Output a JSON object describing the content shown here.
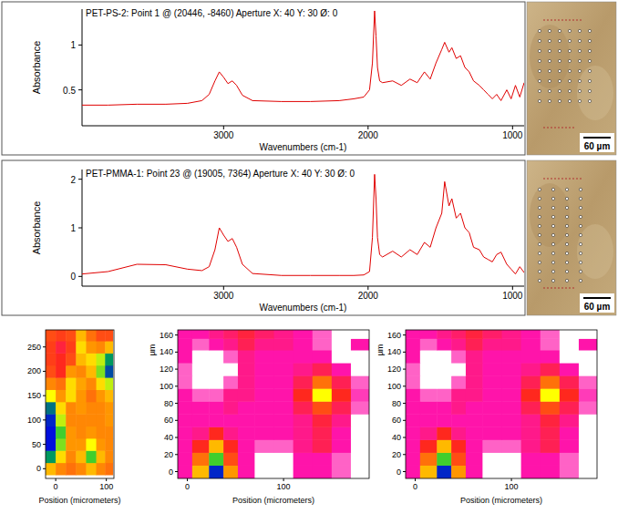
{
  "chart_data": [
    {
      "type": "line",
      "title": "PET-PS-2: Point 1 @ (20446, -8460) Aperture X: 40 Y: 30 Ø: 0",
      "x_label": "Wavenumbers (cm-1)",
      "y_label": "Absorbance",
      "x": [
        3980,
        3800,
        3600,
        3400,
        3250,
        3150,
        3100,
        3060,
        3030,
        3000,
        2970,
        2940,
        2910,
        2870,
        2800,
        2600,
        2400,
        2200,
        2100,
        2030,
        1990,
        1970,
        1955,
        1945,
        1935,
        1920,
        1900,
        1830,
        1770,
        1710,
        1660,
        1610,
        1570,
        1530,
        1490,
        1470,
        1440,
        1420,
        1390,
        1360,
        1330,
        1300,
        1270,
        1230,
        1200,
        1170,
        1140,
        1110,
        1080,
        1040,
        1010,
        980,
        950,
        920
      ],
      "values": [
        0.33,
        0.33,
        0.34,
        0.34,
        0.35,
        0.38,
        0.45,
        0.6,
        0.7,
        0.64,
        0.57,
        0.6,
        0.55,
        0.44,
        0.38,
        0.37,
        0.37,
        0.38,
        0.4,
        0.42,
        0.5,
        0.8,
        1.38,
        1.1,
        0.75,
        0.6,
        0.58,
        0.6,
        0.55,
        0.62,
        0.58,
        0.7,
        0.62,
        0.8,
        0.95,
        1.03,
        0.92,
        0.97,
        0.85,
        0.88,
        0.75,
        0.7,
        0.6,
        0.55,
        0.5,
        0.45,
        0.4,
        0.45,
        0.38,
        0.5,
        0.4,
        0.55,
        0.42,
        0.58
      ],
      "color": "#e00000",
      "xlim": [
        3980,
        920
      ],
      "ylim": [
        0.1,
        1.4
      ],
      "xticks": [
        3000,
        2000,
        1000
      ],
      "yticks": [
        0.5,
        1
      ],
      "grid": false,
      "annotations": [
        "60 µm"
      ]
    },
    {
      "type": "line",
      "title": "PET-PMMA-1: Point 23 @ (19005, 7364) Aperture X: 40 Y: 30 Ø: 0",
      "x_label": "Wavenumbers (cm-1)",
      "y_label": "Absorbance",
      "x": [
        3980,
        3800,
        3600,
        3400,
        3250,
        3150,
        3100,
        3060,
        3030,
        3000,
        2970,
        2940,
        2910,
        2870,
        2800,
        2600,
        2400,
        2200,
        2100,
        2030,
        1990,
        1970,
        1955,
        1945,
        1935,
        1920,
        1900,
        1830,
        1770,
        1710,
        1660,
        1610,
        1570,
        1530,
        1490,
        1470,
        1440,
        1420,
        1390,
        1360,
        1330,
        1300,
        1270,
        1230,
        1200,
        1170,
        1140,
        1110,
        1080,
        1040,
        1010,
        980,
        950,
        920
      ],
      "values": [
        0.05,
        0.1,
        0.25,
        0.24,
        0.15,
        0.12,
        0.2,
        0.55,
        1.0,
        0.85,
        0.72,
        0.78,
        0.6,
        0.25,
        0.06,
        0.02,
        0.02,
        0.02,
        0.02,
        0.03,
        0.1,
        0.8,
        2.1,
        1.6,
        0.8,
        0.45,
        0.4,
        0.52,
        0.4,
        0.55,
        0.45,
        0.7,
        0.6,
        1.0,
        1.3,
        1.95,
        1.45,
        1.6,
        1.2,
        1.3,
        1.0,
        0.9,
        0.6,
        0.55,
        0.4,
        0.35,
        0.3,
        0.45,
        0.5,
        0.25,
        0.15,
        0.05,
        0.2,
        0.08
      ],
      "color": "#e00000",
      "xlim": [
        3980,
        920
      ],
      "ylim": [
        -0.2,
        2.2
      ],
      "xticks": [
        3000,
        2000,
        1000
      ],
      "yticks": [
        0,
        1,
        2
      ],
      "grid": false,
      "annotations": [
        "60 µm"
      ]
    },
    {
      "type": "heatmap",
      "x_label": "Position (micrometers)",
      "x": [
        -10,
        10,
        30,
        50,
        70,
        90,
        105
      ],
      "y": [
        0,
        25,
        50,
        75,
        100,
        125,
        150,
        175,
        200,
        225,
        250,
        275
      ],
      "cells": [
        [
          0.55,
          0.62,
          0.65,
          0.62,
          0.55,
          0.62,
          0.65
        ],
        [
          0.2,
          0.5,
          0.62,
          0.55,
          0.3,
          0.55,
          0.62
        ],
        [
          0.02,
          0.35,
          0.6,
          0.6,
          0.45,
          0.6,
          0.62
        ],
        [
          0.02,
          0.3,
          0.6,
          0.62,
          0.6,
          0.62,
          0.62
        ],
        [
          0.05,
          0.4,
          0.62,
          0.62,
          0.62,
          0.62,
          0.6
        ],
        [
          0.15,
          0.5,
          0.62,
          0.6,
          0.62,
          0.62,
          0.6
        ],
        [
          0.45,
          0.6,
          0.5,
          0.6,
          0.65,
          0.6,
          0.55
        ],
        [
          0.62,
          0.65,
          0.5,
          0.58,
          0.62,
          0.5,
          0.4
        ],
        [
          0.7,
          0.75,
          0.6,
          0.62,
          0.55,
          0.35,
          0.1
        ],
        [
          0.72,
          0.75,
          0.7,
          0.55,
          0.5,
          0.4,
          0.2
        ],
        [
          0.72,
          0.78,
          0.72,
          0.5,
          0.6,
          0.62,
          0.55
        ],
        [
          0.7,
          0.72,
          0.7,
          0.55,
          0.65,
          0.7,
          0.7
        ]
      ],
      "zlim": [
        0,
        1
      ],
      "xlim": [
        -20,
        115
      ],
      "ylim": [
        -20,
        285
      ],
      "xticks": [
        0,
        100
      ],
      "yticks": [
        0,
        50,
        100,
        150,
        200,
        250
      ]
    },
    {
      "type": "heatmap",
      "x_label": "Position (micrometers)",
      "y_label": "µm",
      "x": [
        -5,
        15,
        30,
        45,
        60,
        80,
        100,
        120,
        140,
        160,
        180
      ],
      "y": [
        0,
        15,
        30,
        45,
        60,
        75,
        90,
        105,
        120,
        135,
        150,
        162
      ],
      "cells": [
        [
          0.88,
          0.55,
          0.05,
          0.6,
          0.88,
          1,
          1,
          0.88,
          0.88,
          0.92,
          1
        ],
        [
          0.88,
          0.65,
          0.3,
          0.7,
          0.88,
          1,
          1,
          0.88,
          0.88,
          0.92,
          1
        ],
        [
          0.88,
          0.75,
          0.55,
          0.75,
          0.88,
          0.92,
          0.92,
          0.85,
          0.8,
          0.88,
          1
        ],
        [
          0.88,
          0.85,
          0.75,
          0.85,
          0.88,
          0.88,
          0.88,
          0.85,
          0.8,
          0.88,
          1
        ],
        [
          0.88,
          0.88,
          0.88,
          0.88,
          0.88,
          0.88,
          0.88,
          0.85,
          0.78,
          0.85,
          1
        ],
        [
          0.88,
          0.88,
          0.88,
          0.85,
          0.88,
          0.88,
          0.88,
          0.8,
          0.7,
          0.8,
          0.92
        ],
        [
          0.88,
          0.92,
          0.92,
          0.85,
          0.85,
          0.88,
          0.88,
          0.75,
          0.45,
          0.75,
          0.9
        ],
        [
          0.92,
          1,
          1,
          0.92,
          0.85,
          0.88,
          0.88,
          0.8,
          0.65,
          0.8,
          0.92
        ],
        [
          0.92,
          1,
          1,
          1,
          0.85,
          0.88,
          0.88,
          0.85,
          0.8,
          0.88,
          1
        ],
        [
          0.88,
          1,
          1,
          0.92,
          0.85,
          0.88,
          0.88,
          0.88,
          0.88,
          1,
          1
        ],
        [
          0.88,
          0.92,
          0.88,
          0.85,
          0.8,
          0.85,
          0.85,
          0.88,
          0.92,
          1,
          0.88
        ],
        [
          0.88,
          0.88,
          0.85,
          0.82,
          0.78,
          0.82,
          0.85,
          0.88,
          0.92,
          1,
          1
        ]
      ],
      "zlim": [
        0,
        1
      ],
      "xlim": [
        -10,
        189
      ],
      "ylim": [
        -8,
        166
      ],
      "xticks": [
        0,
        100
      ],
      "yticks": [
        0,
        20,
        40,
        60,
        80,
        100,
        120,
        140,
        160
      ]
    },
    {
      "type": "heatmap",
      "x_label": "Position (micrometers)",
      "y_label": "µm",
      "x": [
        -5,
        15,
        30,
        45,
        60,
        80,
        100,
        120,
        140,
        160,
        180
      ],
      "y": [
        0,
        15,
        30,
        45,
        60,
        75,
        90,
        105,
        120,
        135,
        150,
        162
      ],
      "cells": [
        [
          0.88,
          0.55,
          0.05,
          0.6,
          0.88,
          1,
          1,
          0.88,
          0.88,
          0.92,
          1
        ],
        [
          0.88,
          0.65,
          0.3,
          0.7,
          0.88,
          1,
          1,
          0.88,
          0.88,
          0.92,
          1
        ],
        [
          0.88,
          0.75,
          0.55,
          0.75,
          0.88,
          0.92,
          0.92,
          0.85,
          0.8,
          0.88,
          1
        ],
        [
          0.88,
          0.85,
          0.75,
          0.85,
          0.88,
          0.88,
          0.88,
          0.85,
          0.8,
          0.88,
          1
        ],
        [
          0.88,
          0.88,
          0.88,
          0.88,
          0.88,
          0.88,
          0.88,
          0.85,
          0.78,
          0.85,
          1
        ],
        [
          0.88,
          0.88,
          0.88,
          0.85,
          0.88,
          0.88,
          0.88,
          0.8,
          0.7,
          0.8,
          0.92
        ],
        [
          0.88,
          0.92,
          0.92,
          0.85,
          0.85,
          0.88,
          0.88,
          0.75,
          0.45,
          0.75,
          0.9
        ],
        [
          0.92,
          1,
          1,
          0.92,
          0.85,
          0.88,
          0.88,
          0.8,
          0.65,
          0.8,
          0.92
        ],
        [
          0.92,
          1,
          1,
          1,
          0.85,
          0.88,
          0.88,
          0.85,
          0.8,
          0.88,
          1
        ],
        [
          0.88,
          1,
          1,
          0.92,
          0.85,
          0.88,
          0.88,
          0.88,
          0.88,
          1,
          1
        ],
        [
          0.88,
          0.92,
          0.88,
          0.85,
          0.8,
          0.85,
          0.85,
          0.88,
          0.92,
          1,
          0.88
        ],
        [
          0.88,
          0.88,
          0.85,
          0.82,
          0.78,
          0.82,
          0.85,
          0.88,
          0.92,
          1,
          1
        ]
      ],
      "zlim": [
        0,
        1
      ],
      "xlim": [
        -10,
        189
      ],
      "ylim": [
        -8,
        166
      ],
      "xticks": [
        0,
        100
      ],
      "yticks": [
        0,
        20,
        40,
        60,
        80,
        100,
        120,
        140,
        160
      ]
    }
  ]
}
